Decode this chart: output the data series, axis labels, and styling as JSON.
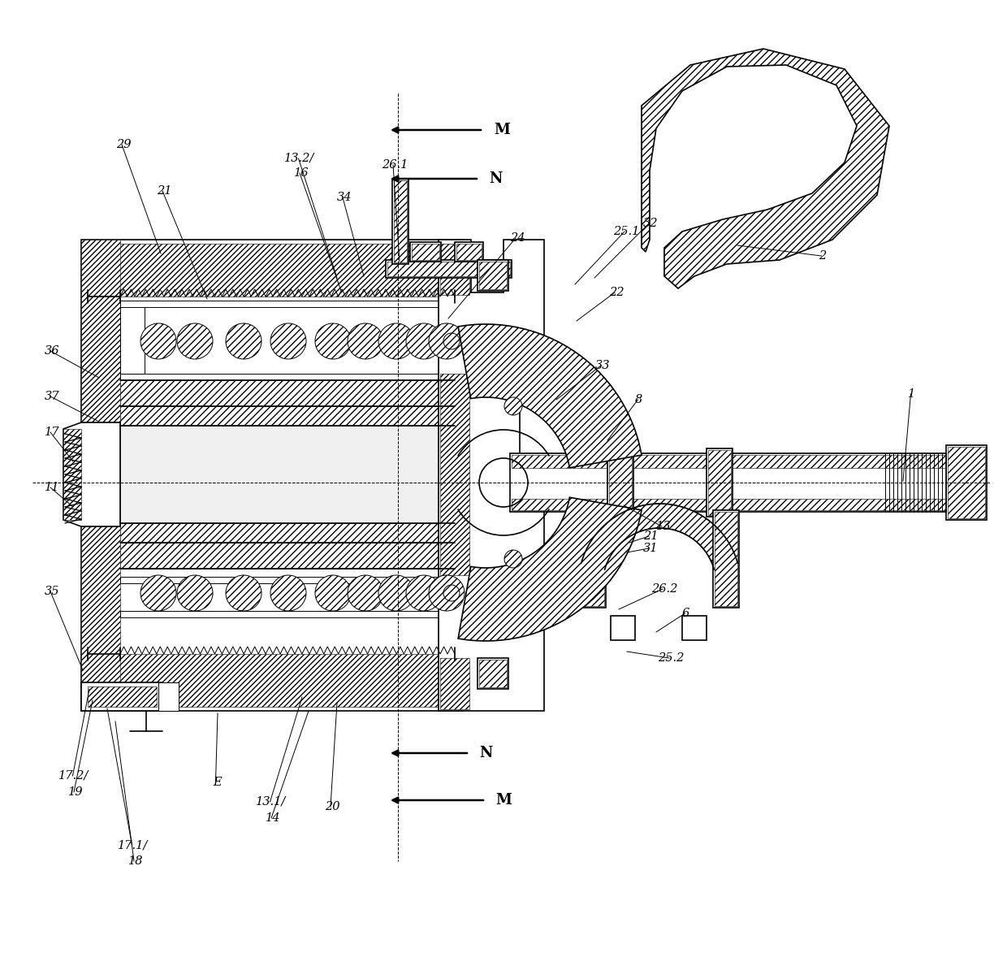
{
  "bg_color": "#ffffff",
  "fig_width": 12.4,
  "fig_height": 11.94,
  "dpi": 100,
  "lw_main": 1.2,
  "lw_thin": 0.7,
  "lw_thick": 2.0,
  "font_size": 10.5,
  "font_family": "DejaVu Serif",
  "label_items": [
    [
      "29",
      143,
      178
    ],
    [
      "21",
      193,
      235
    ],
    [
      "13.2/",
      350,
      195
    ],
    [
      "16",
      362,
      213
    ],
    [
      "34",
      415,
      243
    ],
    [
      "26.1",
      470,
      203
    ],
    [
      "36",
      55,
      432
    ],
    [
      "37",
      55,
      488
    ],
    [
      "17",
      55,
      532
    ],
    [
      "11",
      55,
      600
    ],
    [
      "35",
      55,
      728
    ],
    [
      "17.2/",
      72,
      955
    ],
    [
      "19",
      84,
      975
    ],
    [
      "17.1/",
      145,
      1040
    ],
    [
      "18",
      158,
      1060
    ],
    [
      "E",
      262,
      963
    ],
    [
      "13.1/",
      315,
      987
    ],
    [
      "14",
      327,
      1007
    ],
    [
      "20",
      400,
      993
    ],
    [
      "24",
      628,
      293
    ],
    [
      "25.1",
      755,
      285
    ],
    [
      "32",
      792,
      275
    ],
    [
      "22",
      750,
      360
    ],
    [
      "33",
      733,
      450
    ],
    [
      "8",
      782,
      492
    ],
    [
      "13",
      808,
      648
    ],
    [
      "31",
      792,
      675
    ],
    [
      "21",
      792,
      660
    ],
    [
      "26.2",
      802,
      725
    ],
    [
      "6",
      840,
      755
    ],
    [
      "25.2",
      810,
      810
    ],
    [
      "2",
      1008,
      315
    ],
    [
      "1",
      1118,
      485
    ]
  ],
  "arrows": [
    [
      "M",
      478,
      160,
      595,
      160,
      608,
      160
    ],
    [
      "N",
      478,
      220,
      590,
      220,
      602,
      220
    ],
    [
      "N",
      478,
      927,
      578,
      927,
      590,
      927
    ],
    [
      "M",
      478,
      985,
      598,
      985,
      610,
      985
    ]
  ]
}
